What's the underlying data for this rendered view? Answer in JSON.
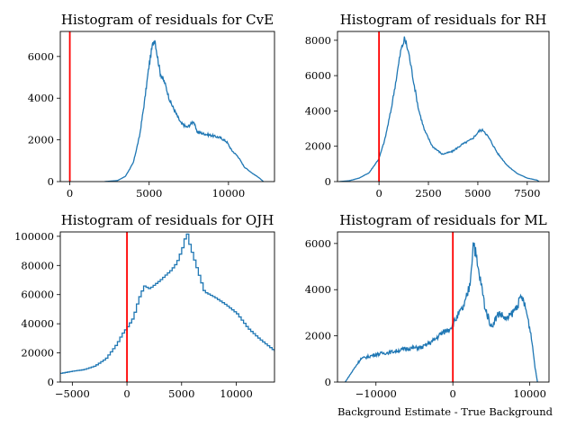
{
  "chart_data": [
    {
      "type": "histogram",
      "title": "Histogram of residuals for CvE",
      "xlabel": "",
      "ylabel": "",
      "xlim": [
        -600,
        12900
      ],
      "ylim": [
        0,
        7200
      ],
      "xticks": [
        0,
        5000,
        10000
      ],
      "yticks": [
        0,
        2000,
        4000,
        6000
      ],
      "vline": 0,
      "series_color": "#1f77b4",
      "vline_color": "#ff0000",
      "curve": [
        [
          2200,
          0
        ],
        [
          3000,
          50
        ],
        [
          3500,
          250
        ],
        [
          4000,
          900
        ],
        [
          4400,
          2200
        ],
        [
          4700,
          3800
        ],
        [
          5000,
          5600
        ],
        [
          5200,
          6500
        ],
        [
          5350,
          6900
        ],
        [
          5500,
          6100
        ],
        [
          5700,
          5200
        ],
        [
          6000,
          4700
        ],
        [
          6300,
          3900
        ],
        [
          6600,
          3400
        ],
        [
          7000,
          2800
        ],
        [
          7400,
          2600
        ],
        [
          7800,
          2900
        ],
        [
          8000,
          2400
        ],
        [
          8400,
          2300
        ],
        [
          9000,
          2200
        ],
        [
          9500,
          2100
        ],
        [
          9900,
          1900
        ],
        [
          10200,
          1500
        ],
        [
          10600,
          1200
        ],
        [
          11000,
          700
        ],
        [
          11500,
          400
        ],
        [
          11900,
          200
        ],
        [
          12200,
          0
        ]
      ]
    },
    {
      "type": "histogram",
      "title": "Histogram of residuals for RH",
      "xlabel": "",
      "ylabel": "",
      "xlim": [
        -2100,
        8600
      ],
      "ylim": [
        0,
        8500
      ],
      "xticks": [
        0,
        2500,
        5000,
        7500
      ],
      "yticks": [
        0,
        2000,
        4000,
        6000,
        8000
      ],
      "vline": 0,
      "series_color": "#1f77b4",
      "vline_color": "#ff0000",
      "curve": [
        [
          -2000,
          0
        ],
        [
          -1500,
          50
        ],
        [
          -1000,
          200
        ],
        [
          -500,
          500
        ],
        [
          0,
          1300
        ],
        [
          300,
          2400
        ],
        [
          600,
          4000
        ],
        [
          900,
          6000
        ],
        [
          1100,
          7400
        ],
        [
          1300,
          8100
        ],
        [
          1500,
          7300
        ],
        [
          1700,
          6000
        ],
        [
          2000,
          4100
        ],
        [
          2300,
          2900
        ],
        [
          2700,
          2000
        ],
        [
          3200,
          1550
        ],
        [
          3700,
          1700
        ],
        [
          4200,
          2100
        ],
        [
          4700,
          2400
        ],
        [
          5100,
          2900
        ],
        [
          5300,
          2900
        ],
        [
          5600,
          2400
        ],
        [
          6000,
          1600
        ],
        [
          6500,
          900
        ],
        [
          7000,
          450
        ],
        [
          7500,
          200
        ],
        [
          8000,
          80
        ],
        [
          8100,
          0
        ]
      ]
    },
    {
      "type": "histogram",
      "title": "Histogram of residuals for OJH",
      "xlabel": "",
      "ylabel": "",
      "xlim": [
        -6100,
        13500
      ],
      "ylim": [
        0,
        103000
      ],
      "xticks": [
        -5000,
        0,
        5000,
        10000
      ],
      "yticks": [
        0,
        20000,
        40000,
        60000,
        80000,
        100000
      ],
      "vline": 0,
      "series_color": "#1f77b4",
      "vline_color": "#ff0000",
      "curve": [
        [
          -6100,
          6000
        ],
        [
          -5000,
          7500
        ],
        [
          -4000,
          8500
        ],
        [
          -3000,
          11000
        ],
        [
          -2000,
          16000
        ],
        [
          -1000,
          26000
        ],
        [
          -500,
          33000
        ],
        [
          0,
          38000
        ],
        [
          500,
          44000
        ],
        [
          1000,
          57000
        ],
        [
          1500,
          66000
        ],
        [
          2000,
          64000
        ],
        [
          3000,
          70000
        ],
        [
          4000,
          77000
        ],
        [
          4500,
          82000
        ],
        [
          5000,
          92000
        ],
        [
          5400,
          103000
        ],
        [
          5600,
          96000
        ],
        [
          6000,
          86000
        ],
        [
          6500,
          74000
        ],
        [
          7000,
          62000
        ],
        [
          8000,
          58000
        ],
        [
          9000,
          53000
        ],
        [
          10000,
          47000
        ],
        [
          11000,
          37000
        ],
        [
          12000,
          30000
        ],
        [
          13000,
          24000
        ],
        [
          13500,
          21000
        ]
      ]
    },
    {
      "type": "histogram",
      "title": "Histogram of residuals for ML",
      "xlabel": "Background Estimate - True Background",
      "ylabel": "",
      "xlim": [
        -15000,
        12500
      ],
      "ylim": [
        0,
        6500
      ],
      "xticks": [
        -10000,
        0,
        10000
      ],
      "yticks": [
        0,
        2000,
        4000,
        6000
      ],
      "vline": 0,
      "series_color": "#1f77b4",
      "vline_color": "#ff0000",
      "curve": [
        [
          -14000,
          0
        ],
        [
          -13000,
          500
        ],
        [
          -12000,
          1000
        ],
        [
          -10000,
          1200
        ],
        [
          -8000,
          1300
        ],
        [
          -6000,
          1450
        ],
        [
          -4000,
          1500
        ],
        [
          -2500,
          1800
        ],
        [
          -1500,
          2100
        ],
        [
          -500,
          2300
        ],
        [
          0,
          2500
        ],
        [
          500,
          2800
        ],
        [
          1500,
          3300
        ],
        [
          2200,
          4200
        ],
        [
          2700,
          6200
        ],
        [
          3200,
          5000
        ],
        [
          3700,
          4200
        ],
        [
          4200,
          3200
        ],
        [
          5000,
          2400
        ],
        [
          6000,
          3000
        ],
        [
          7000,
          2700
        ],
        [
          8000,
          3100
        ],
        [
          9000,
          3700
        ],
        [
          9600,
          3000
        ],
        [
          10200,
          2000
        ],
        [
          10700,
          600
        ],
        [
          11000,
          0
        ]
      ]
    }
  ]
}
